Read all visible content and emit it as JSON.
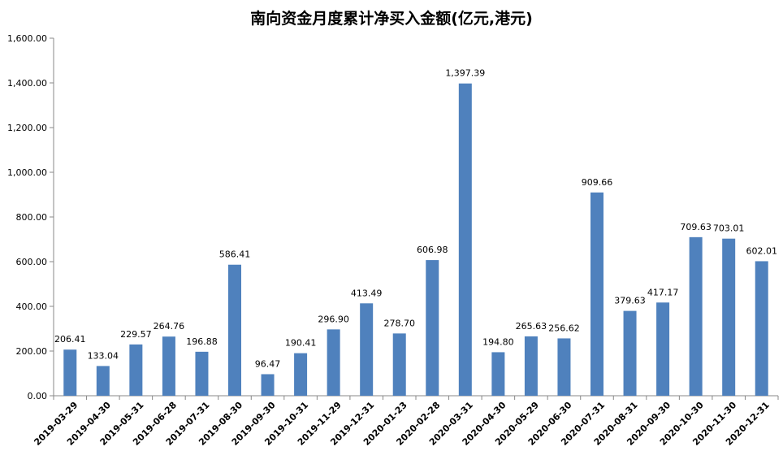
{
  "chart_data": {
    "type": "bar",
    "title": "南向资金月度累计净买入金额(亿元,港元)",
    "categories": [
      "2019-03-29",
      "2019-04-30",
      "2019-05-31",
      "2019-06-28",
      "2019-07-31",
      "2019-08-30",
      "2019-09-30",
      "2019-10-31",
      "2019-11-29",
      "2019-12-31",
      "2020-01-23",
      "2020-02-28",
      "2020-03-31",
      "2020-04-30",
      "2020-05-29",
      "2020-06-30",
      "2020-07-31",
      "2020-08-31",
      "2020-09-30",
      "2020-10-30",
      "2020-11-30",
      "2020-12-31"
    ],
    "values": [
      206.41,
      133.04,
      229.57,
      264.76,
      196.88,
      586.41,
      96.47,
      190.41,
      296.9,
      413.49,
      278.7,
      606.98,
      1397.39,
      194.8,
      265.63,
      256.62,
      909.66,
      379.63,
      417.17,
      709.63,
      703.01,
      602.01
    ],
    "value_labels": [
      "206.41",
      "133.04",
      "229.57",
      "264.76",
      "196.88",
      "586.41",
      "96.47",
      "190.41",
      "296.90",
      "413.49",
      "278.70",
      "606.98",
      "1,397.39",
      "194.80",
      "265.63",
      "256.62",
      "909.66",
      "379.63",
      "417.17",
      "709.63",
      "703.01",
      "602.01"
    ],
    "yticks": [
      0,
      200,
      400,
      600,
      800,
      1000,
      1200,
      1400,
      1600
    ],
    "ytick_labels": [
      "0.00",
      "200.00",
      "400.00",
      "600.00",
      "800.00",
      "1,000.00",
      "1,200.00",
      "1,400.00",
      "1,600.00"
    ],
    "ylim": [
      0,
      1600
    ],
    "xlabel": "",
    "ylabel": "",
    "grid": false,
    "legend": "none",
    "bar_color": "#4F81BD"
  }
}
